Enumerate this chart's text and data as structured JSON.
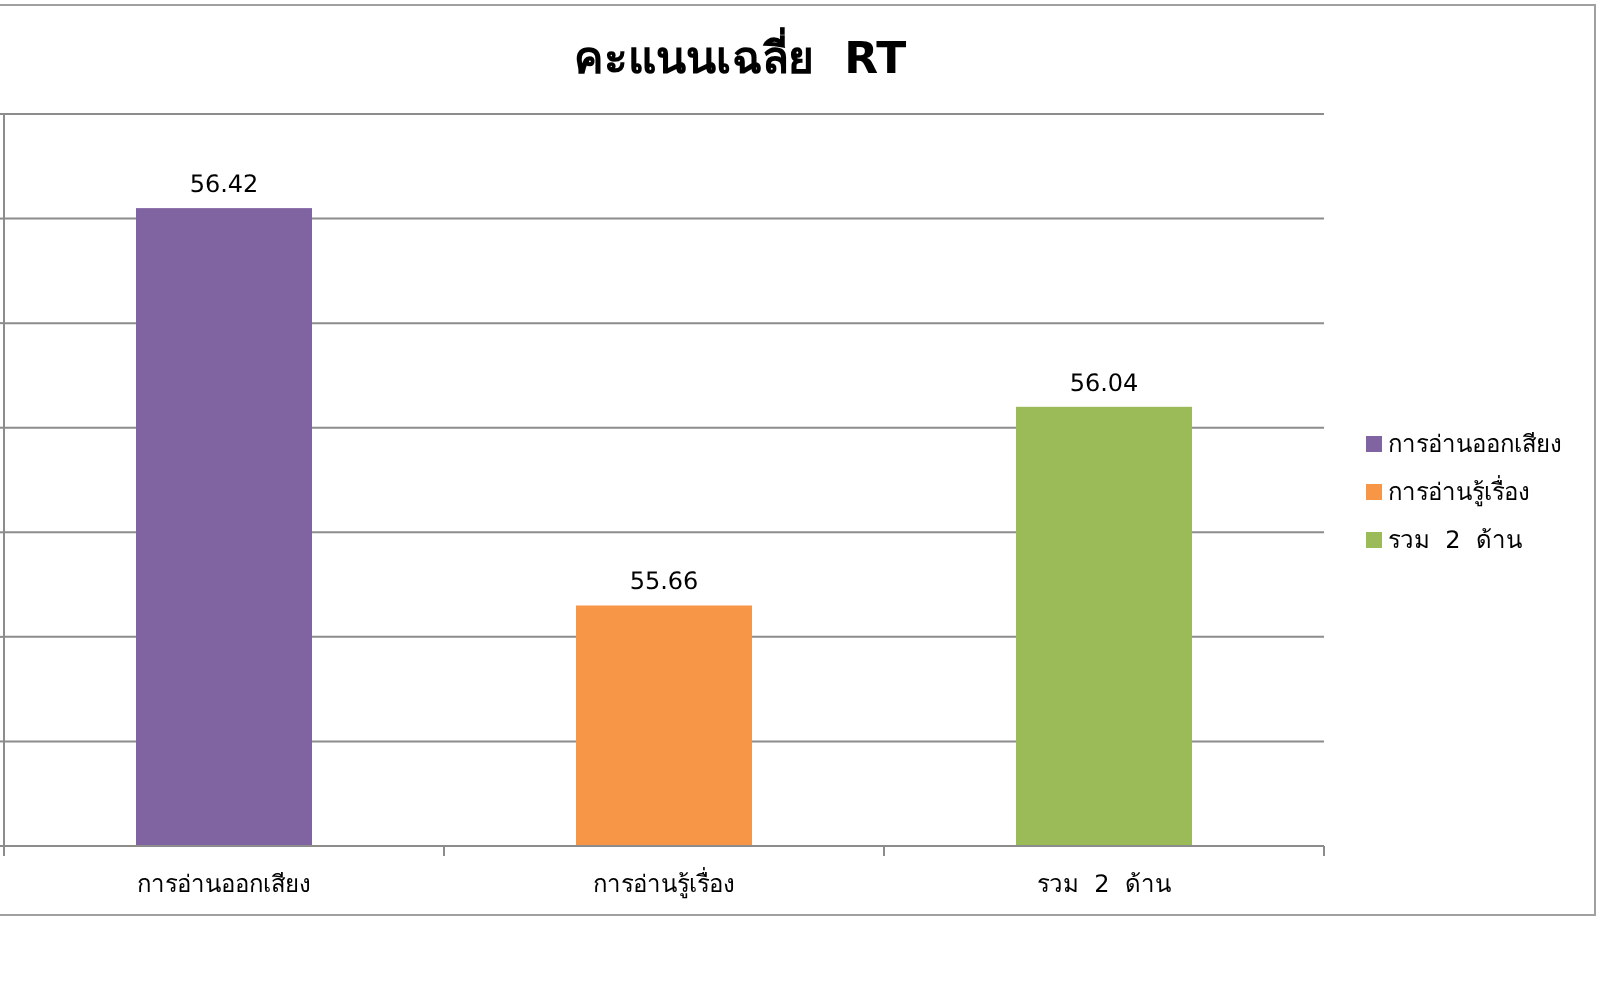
{
  "chart_data": {
    "type": "bar",
    "title": "คะแนนเฉลี่ย  RT",
    "categories": [
      "การอ่านออกเสียง",
      "การอ่านรู้เรื่อง",
      "รวม  2  ด้าน"
    ],
    "series": [
      {
        "name": "การอ่านออกเสียง",
        "color": "#8064a2",
        "values": [
          56.42,
          null,
          null
        ]
      },
      {
        "name": "การอ่านรู้เรื่อง",
        "color": "#f79646",
        "values": [
          null,
          55.66,
          null
        ]
      },
      {
        "name": "รวม  2  ด้าน",
        "color": "#9bbb59",
        "values": [
          null,
          null,
          56.04
        ]
      }
    ],
    "ylim": [
      55.2,
      56.6
    ],
    "yticks": [
      {
        "value": 55.2,
        "label": null
      },
      {
        "value": 55.4,
        "label": null
      },
      {
        "value": 55.6,
        "label": null
      },
      {
        "value": 55.8,
        "label": null
      },
      {
        "value": 56.0,
        "label": null
      },
      {
        "value": 56.2,
        "label": null
      },
      {
        "value": 56.4,
        "label": null
      },
      {
        "value": 56.6,
        "label": null
      }
    ],
    "tick_labels": "x",
    "grid": "y",
    "legend": "right",
    "data_labels": true
  }
}
